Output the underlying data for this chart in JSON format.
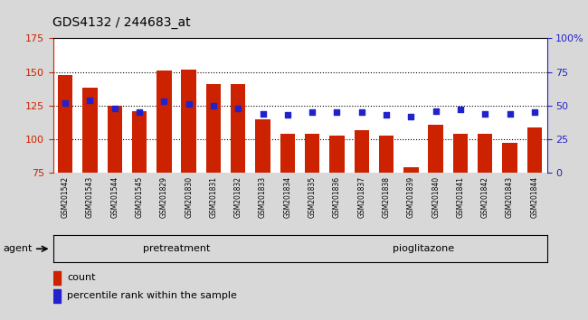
{
  "title": "GDS4132 / 244683_at",
  "categories": [
    "GSM201542",
    "GSM201543",
    "GSM201544",
    "GSM201545",
    "GSM201829",
    "GSM201830",
    "GSM201831",
    "GSM201832",
    "GSM201833",
    "GSM201834",
    "GSM201835",
    "GSM201836",
    "GSM201837",
    "GSM201838",
    "GSM201839",
    "GSM201840",
    "GSM201841",
    "GSM201842",
    "GSM201843",
    "GSM201844"
  ],
  "bar_values": [
    148,
    138,
    125,
    121,
    151,
    152,
    141,
    141,
    115,
    104,
    104,
    103,
    107,
    103,
    79,
    111,
    104,
    104,
    97,
    109
  ],
  "dot_values": [
    52,
    54,
    48,
    45,
    53,
    51,
    50,
    48,
    44,
    43,
    45,
    45,
    45,
    43,
    42,
    46,
    47,
    44,
    44,
    45
  ],
  "bar_bottom": 75,
  "ylim_left": [
    75,
    175
  ],
  "ylim_right": [
    0,
    100
  ],
  "left_ticks": [
    75,
    100,
    125,
    150,
    175
  ],
  "right_ticks": [
    0,
    25,
    50,
    75,
    100
  ],
  "right_tick_labels": [
    "0",
    "25",
    "50",
    "75",
    "100%"
  ],
  "bar_color": "#cc2200",
  "dot_color": "#2222cc",
  "pretreatment_label": "pretreatment",
  "pioglitazone_label": "pioglitazone",
  "agent_label": "agent",
  "legend_count": "count",
  "legend_percentile": "percentile rank within the sample",
  "bg_color": "#d8d8d8",
  "plot_bg_color": "#ffffff",
  "pretreatment_color": "#c8f0c8",
  "pioglitazone_color": "#44cc44",
  "n_pretreatment": 10,
  "n_pioglitazone": 10,
  "ticklabel_bg": "#c8c8c8"
}
